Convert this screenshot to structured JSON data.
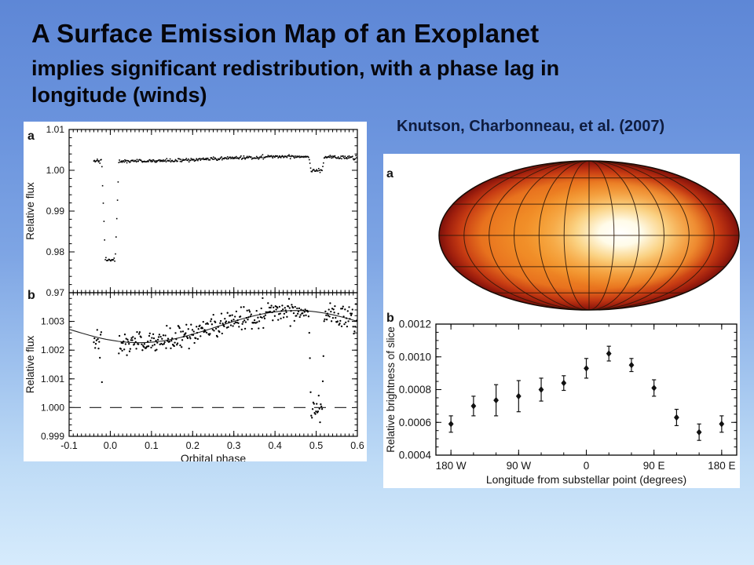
{
  "slide": {
    "title": "A Surface Emission Map of an Exoplanet",
    "subtitle_lines": [
      "implies significant redistribution, with a phase lag in",
      "longitude (winds)"
    ],
    "citation": "Knutson, Charbonneau, et al. (2007)",
    "background_top": "#5e87d6",
    "background_bottom": "#d6ebfc"
  },
  "chart_data": [
    {
      "id": "lightcurve",
      "type": "scatter",
      "title": "",
      "xlabel": "Orbital phase",
      "xlim": [
        -0.1,
        0.6
      ],
      "xtick_values": [
        -0.1,
        0.0,
        0.1,
        0.2,
        0.3,
        0.4,
        0.5,
        0.6
      ],
      "xtick_labels": [
        "-0.1",
        "0.0",
        "0.1",
        "0.2",
        "0.3",
        "0.4",
        "0.5",
        "0.6"
      ],
      "panels": [
        {
          "label": "a",
          "ylabel": "Relative flux",
          "ylim": [
            0.97,
            1.01
          ],
          "ytick_values": [
            1.01,
            1.0,
            0.99,
            0.98,
            0.97
          ],
          "ytick_labels": [
            "1.01",
            "1.00",
            "0.99",
            "0.98",
            "0.97"
          ],
          "description": "Full 8-um light curve: flat baseline near 1.003, deep transit at phase 0 to 0.9785, shallow secondary eclipse at phase 0.5 to 1.000"
        },
        {
          "label": "b",
          "ylabel": "Relative flux",
          "ylim": [
            0.999,
            1.004
          ],
          "ytick_values": [
            1.003,
            1.002,
            1.001,
            1.0,
            0.999
          ],
          "ytick_labels": [
            "1.003",
            "1.002",
            "1.001",
            "1.000",
            "0.999"
          ],
          "dashed_reference": 1.0,
          "description": "Zoom of phase curve: smooth model rising from minimum ~1.0023 near phase 0.07 to maximum ~1.0034 near phase 0.45, secondary eclipse dip to 1.000 at phase 0.5"
        }
      ],
      "model": {
        "baseline": 1.00282,
        "phase_amplitude": 0.00056,
        "phase_peak": 0.45,
        "phase_period": 0.76,
        "transit_center": 0.0,
        "transit_depth": 0.0243,
        "transit_flat_halfwidth": 0.012,
        "transit_total_halfwidth": 0.021,
        "eclipse_center": 0.501,
        "eclipse_floor": 1.0,
        "eclipse_flat_halfwidth": 0.013,
        "eclipse_total_halfwidth": 0.019,
        "noise_sigma": 0.00021,
        "n_points": 390,
        "phase_start": -0.04,
        "phase_end": 0.598,
        "seed": 42
      }
    },
    {
      "id": "emission-map",
      "type": "heatmap",
      "label": "a",
      "description": "Mollweide-projection surface brightness map of HD 189733b: bright white hot spot offset east of the substellar point, orange mid-tones, dark red limb, black 30-degree graticule",
      "colors": {
        "hotspot": "#ffffff",
        "cream": "#fffbe8",
        "bright_orange": "#f7a93c",
        "warm_orange": "#e8721e",
        "red": "#c73c13",
        "rim_dark_red": "#7c120b",
        "grid": "#2a1608"
      },
      "hotspot_offset_east_deg": 30
    },
    {
      "id": "slice-brightness",
      "type": "scatter",
      "label": "b",
      "ylabel": "Relative brightness of slice",
      "xlabel": "Longitude from substellar point (degrees)",
      "ylim": [
        0.0004,
        0.0012
      ],
      "ytick_values": [
        0.0004,
        0.0006,
        0.0008,
        0.001,
        0.0012
      ],
      "ytick_labels": [
        "0.0004",
        "0.0006",
        "0.0008",
        "0.0010",
        "0.0012"
      ],
      "xlim": [
        -200,
        200
      ],
      "xtick_values": [
        -180,
        -90,
        0,
        90,
        180
      ],
      "xtick_labels": [
        "180 W",
        "90 W",
        "0",
        "90 E",
        "180 E"
      ],
      "minor_xtick_step": 30,
      "x": [
        -180,
        -150,
        -120,
        -90,
        -60,
        -30,
        0,
        30,
        60,
        90,
        120,
        150,
        180
      ],
      "y": [
        0.00059,
        0.0007,
        0.000735,
        0.00076,
        0.0008,
        0.00084,
        0.00093,
        0.00102,
        0.00095,
        0.00081,
        0.00063,
        0.00054,
        0.00059
      ],
      "yerr": [
        5e-05,
        6e-05,
        9.5e-05,
        9.5e-05,
        7e-05,
        4.5e-05,
        6e-05,
        4.5e-05,
        4e-05,
        5e-05,
        5e-05,
        5e-05,
        5e-05
      ],
      "marker": "diamond"
    }
  ]
}
